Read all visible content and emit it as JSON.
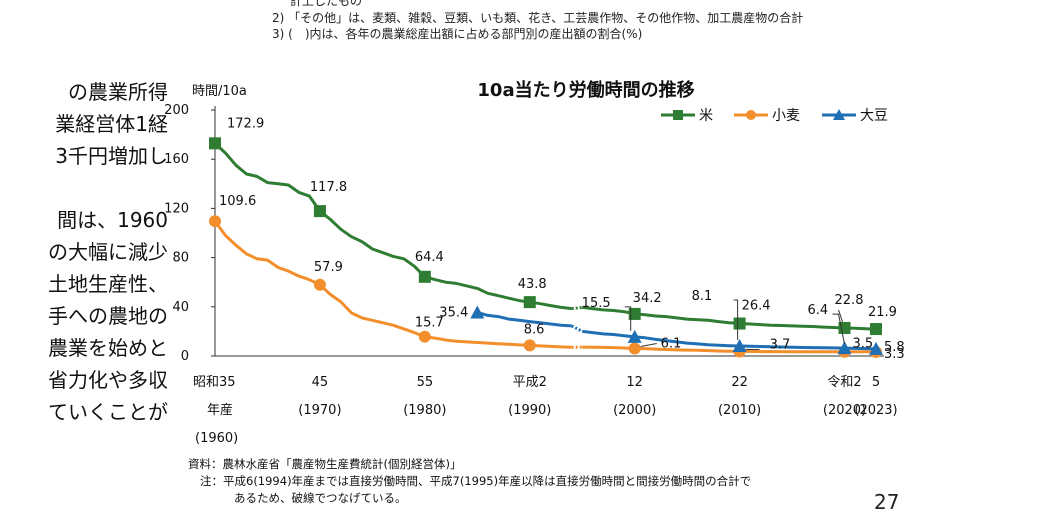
{
  "top_notes": [
    "計上したもの",
    "2) 「その他」は、麦類、雑穀、豆類、いも類、花き、工芸農作物、その他作物、加工農産物の合計",
    "3) (　)内は、各年の農業総産出額に占める部門別の産出額の割合(%)"
  ],
  "left_text": [
    "の農業所得",
    "業経営体1経",
    "3千円増加し",
    "",
    "間は、1960",
    "の大幅に減少",
    "土地生産性、",
    "手への農地の",
    "農業を始めと",
    "省力化や多収",
    "ていくことが"
  ],
  "source": "資料：農林水産省「農産物生産費統計(個別経営体)」",
  "note_line1": "注：平成6(1994)年産までは直接労働時間、平成7(1995)年産以降は直接労働時間と間接労働時間の合計で",
  "note_line2": "あるため、破線でつなげている。",
  "page_number": "27",
  "chart_data": {
    "type": "line",
    "title": "10a当たり労働時間の推移",
    "ylabel": "時間/10a",
    "ylim": [
      0,
      200
    ],
    "yticks": [
      0,
      40,
      80,
      120,
      160,
      200
    ],
    "xlim": [
      1960,
      2023
    ],
    "xticks": [
      {
        "x": 1960,
        "line1": "昭和35",
        "line2": "年産",
        "line3": "(1960)"
      },
      {
        "x": 1970,
        "line1": "45",
        "line2": "(1970)",
        "line3": ""
      },
      {
        "x": 1980,
        "line1": "55",
        "line2": "(1980)",
        "line3": ""
      },
      {
        "x": 1990,
        "line1": "平成2",
        "line2": "(1990)",
        "line3": ""
      },
      {
        "x": 2000,
        "line1": "12",
        "line2": "(2000)",
        "line3": ""
      },
      {
        "x": 2010,
        "line1": "22",
        "line2": "(2010)",
        "line3": ""
      },
      {
        "x": 2020,
        "line1": "令和2",
        "line2": "(2020)",
        "line3": ""
      },
      {
        "x": 2023,
        "line1": "5",
        "line2": "(2023)",
        "line3": ""
      }
    ],
    "legend_position": "top-right",
    "break_after": 1994,
    "series": [
      {
        "name": "米",
        "color": "#2e7d32",
        "marker": "square",
        "points": [
          [
            1960,
            172.9
          ],
          [
            1961,
            165
          ],
          [
            1962,
            155
          ],
          [
            1963,
            148
          ],
          [
            1964,
            146
          ],
          [
            1965,
            141
          ],
          [
            1966,
            140
          ],
          [
            1967,
            139
          ],
          [
            1968,
            133
          ],
          [
            1969,
            130
          ],
          [
            1970,
            117.8
          ],
          [
            1971,
            111
          ],
          [
            1972,
            103
          ],
          [
            1973,
            97
          ],
          [
            1974,
            93
          ],
          [
            1975,
            87
          ],
          [
            1976,
            84
          ],
          [
            1977,
            81
          ],
          [
            1978,
            79
          ],
          [
            1979,
            73
          ],
          [
            1980,
            64.4
          ],
          [
            1981,
            62
          ],
          [
            1982,
            60
          ],
          [
            1983,
            59
          ],
          [
            1984,
            57
          ],
          [
            1985,
            55
          ],
          [
            1986,
            51
          ],
          [
            1987,
            49
          ],
          [
            1988,
            47
          ],
          [
            1989,
            45
          ],
          [
            1990,
            43.8
          ],
          [
            1991,
            42.5
          ],
          [
            1992,
            41
          ],
          [
            1993,
            39.5
          ],
          [
            1994,
            38.5
          ],
          [
            1995,
            39.5
          ],
          [
            1996,
            38.5
          ],
          [
            1997,
            37.5
          ],
          [
            1998,
            37
          ],
          [
            1999,
            36
          ],
          [
            2000,
            34.2
          ],
          [
            2001,
            33.5
          ],
          [
            2002,
            32.5
          ],
          [
            2003,
            32
          ],
          [
            2004,
            31
          ],
          [
            2005,
            30
          ],
          [
            2006,
            29.5
          ],
          [
            2007,
            29
          ],
          [
            2008,
            28
          ],
          [
            2009,
            27
          ],
          [
            2010,
            26.4
          ],
          [
            2011,
            26
          ],
          [
            2012,
            25.5
          ],
          [
            2013,
            25
          ],
          [
            2014,
            24.8
          ],
          [
            2015,
            24.5
          ],
          [
            2016,
            24.2
          ],
          [
            2017,
            24
          ],
          [
            2018,
            23.5
          ],
          [
            2019,
            23.2
          ],
          [
            2020,
            22.8
          ],
          [
            2021,
            22.5
          ],
          [
            2022,
            22.2
          ],
          [
            2023,
            21.9
          ]
        ],
        "marked_x": [
          1960,
          1970,
          1980,
          1990,
          2000,
          2010,
          2020,
          2023
        ]
      },
      {
        "name": "小麦",
        "color": "#f28e2b",
        "marker": "circle",
        "points": [
          [
            1960,
            109.6
          ],
          [
            1961,
            98
          ],
          [
            1962,
            90
          ],
          [
            1963,
            83
          ],
          [
            1964,
            79
          ],
          [
            1965,
            78
          ],
          [
            1966,
            72
          ],
          [
            1967,
            69
          ],
          [
            1968,
            65
          ],
          [
            1969,
            62
          ],
          [
            1970,
            57.9
          ],
          [
            1971,
            50
          ],
          [
            1972,
            44
          ],
          [
            1973,
            35
          ],
          [
            1974,
            31
          ],
          [
            1975,
            29
          ],
          [
            1976,
            27
          ],
          [
            1977,
            25
          ],
          [
            1978,
            22
          ],
          [
            1979,
            19
          ],
          [
            1980,
            15.7
          ],
          [
            1981,
            14.5
          ],
          [
            1982,
            13
          ],
          [
            1983,
            12
          ],
          [
            1984,
            11.5
          ],
          [
            1985,
            11
          ],
          [
            1986,
            10.5
          ],
          [
            1987,
            10
          ],
          [
            1988,
            9.5
          ],
          [
            1989,
            9
          ],
          [
            1990,
            8.6
          ],
          [
            1991,
            8.2
          ],
          [
            1992,
            7.8
          ],
          [
            1993,
            7.4
          ],
          [
            1994,
            7.1
          ],
          [
            1995,
            7.2
          ],
          [
            1996,
            7.1
          ],
          [
            1997,
            7
          ],
          [
            1998,
            6.8
          ],
          [
            1999,
            6.5
          ],
          [
            2000,
            6.1
          ],
          [
            2001,
            6
          ],
          [
            2002,
            5.6
          ],
          [
            2003,
            5.3
          ],
          [
            2004,
            5
          ],
          [
            2005,
            4.8
          ],
          [
            2006,
            4.6
          ],
          [
            2007,
            4.4
          ],
          [
            2008,
            4.1
          ],
          [
            2009,
            3.9
          ],
          [
            2010,
            3.7
          ],
          [
            2011,
            3.7
          ],
          [
            2012,
            3.6
          ],
          [
            2013,
            3.6
          ],
          [
            2014,
            3.6
          ],
          [
            2015,
            3.5
          ],
          [
            2016,
            3.5
          ],
          [
            2017,
            3.5
          ],
          [
            2018,
            3.5
          ],
          [
            2019,
            3.5
          ],
          [
            2020,
            3.5
          ],
          [
            2021,
            3.4
          ],
          [
            2022,
            3.4
          ],
          [
            2023,
            3.3
          ]
        ],
        "marked_x": [
          1960,
          1970,
          1980,
          1990,
          2000,
          2010,
          2020,
          2023
        ]
      },
      {
        "name": "大豆",
        "color": "#1f6fb4",
        "marker": "triangle",
        "points": [
          [
            1985,
            35.4
          ],
          [
            1986,
            33
          ],
          [
            1987,
            32
          ],
          [
            1988,
            30
          ],
          [
            1989,
            29
          ],
          [
            1990,
            28
          ],
          [
            1991,
            27
          ],
          [
            1992,
            26
          ],
          [
            1993,
            25
          ],
          [
            1994,
            24.5
          ],
          [
            1995,
            20
          ],
          [
            1996,
            19
          ],
          [
            1997,
            18
          ],
          [
            1998,
            17.5
          ],
          [
            1999,
            16.5
          ],
          [
            2000,
            15.5
          ],
          [
            2001,
            14.8
          ],
          [
            2002,
            13.5
          ],
          [
            2003,
            12.5
          ],
          [
            2004,
            11.5
          ],
          [
            2005,
            10.5
          ],
          [
            2006,
            9.8
          ],
          [
            2007,
            9.2
          ],
          [
            2008,
            8.8
          ],
          [
            2009,
            8.4
          ],
          [
            2010,
            8.1
          ],
          [
            2011,
            7.9
          ],
          [
            2012,
            7.7
          ],
          [
            2013,
            7.5
          ],
          [
            2014,
            7.3
          ],
          [
            2015,
            7.1
          ],
          [
            2016,
            6.9
          ],
          [
            2017,
            6.8
          ],
          [
            2018,
            6.7
          ],
          [
            2019,
            6.6
          ],
          [
            2020,
            6.4
          ],
          [
            2021,
            6.2
          ],
          [
            2022,
            6
          ],
          [
            2023,
            5.8
          ]
        ],
        "marked_x": [
          1985,
          2000,
          2010,
          2020,
          2023
        ]
      }
    ],
    "data_labels": [
      {
        "series": 0,
        "x": 1960,
        "text": "172.9"
      },
      {
        "series": 0,
        "x": 1970,
        "text": "117.8"
      },
      {
        "series": 0,
        "x": 1980,
        "text": "64.4"
      },
      {
        "series": 0,
        "x": 1990,
        "text": "43.8"
      },
      {
        "series": 0,
        "x": 2000,
        "text": "34.2"
      },
      {
        "series": 0,
        "x": 2010,
        "text": "26.4"
      },
      {
        "series": 0,
        "x": 2020,
        "text": "22.8"
      },
      {
        "series": 0,
        "x": 2023,
        "text": "21.9"
      },
      {
        "series": 1,
        "x": 1960,
        "text": "109.6"
      },
      {
        "series": 1,
        "x": 1970,
        "text": "57.9"
      },
      {
        "series": 1,
        "x": 1980,
        "text": "15.7"
      },
      {
        "series": 1,
        "x": 1990,
        "text": "8.6"
      },
      {
        "series": 1,
        "x": 2000,
        "text": "6.1"
      },
      {
        "series": 1,
        "x": 2010,
        "text": "3.7"
      },
      {
        "series": 1,
        "x": 2020,
        "text": "3.5"
      },
      {
        "series": 1,
        "x": 2023,
        "text": "3.3"
      },
      {
        "series": 2,
        "x": 1985,
        "text": "35.4"
      },
      {
        "series": 2,
        "x": 2000,
        "text": "15.5"
      },
      {
        "series": 2,
        "x": 2010,
        "text": "8.1"
      },
      {
        "series": 2,
        "x": 2020,
        "text": "6.4"
      },
      {
        "series": 2,
        "x": 2023,
        "text": "5.8"
      }
    ]
  }
}
